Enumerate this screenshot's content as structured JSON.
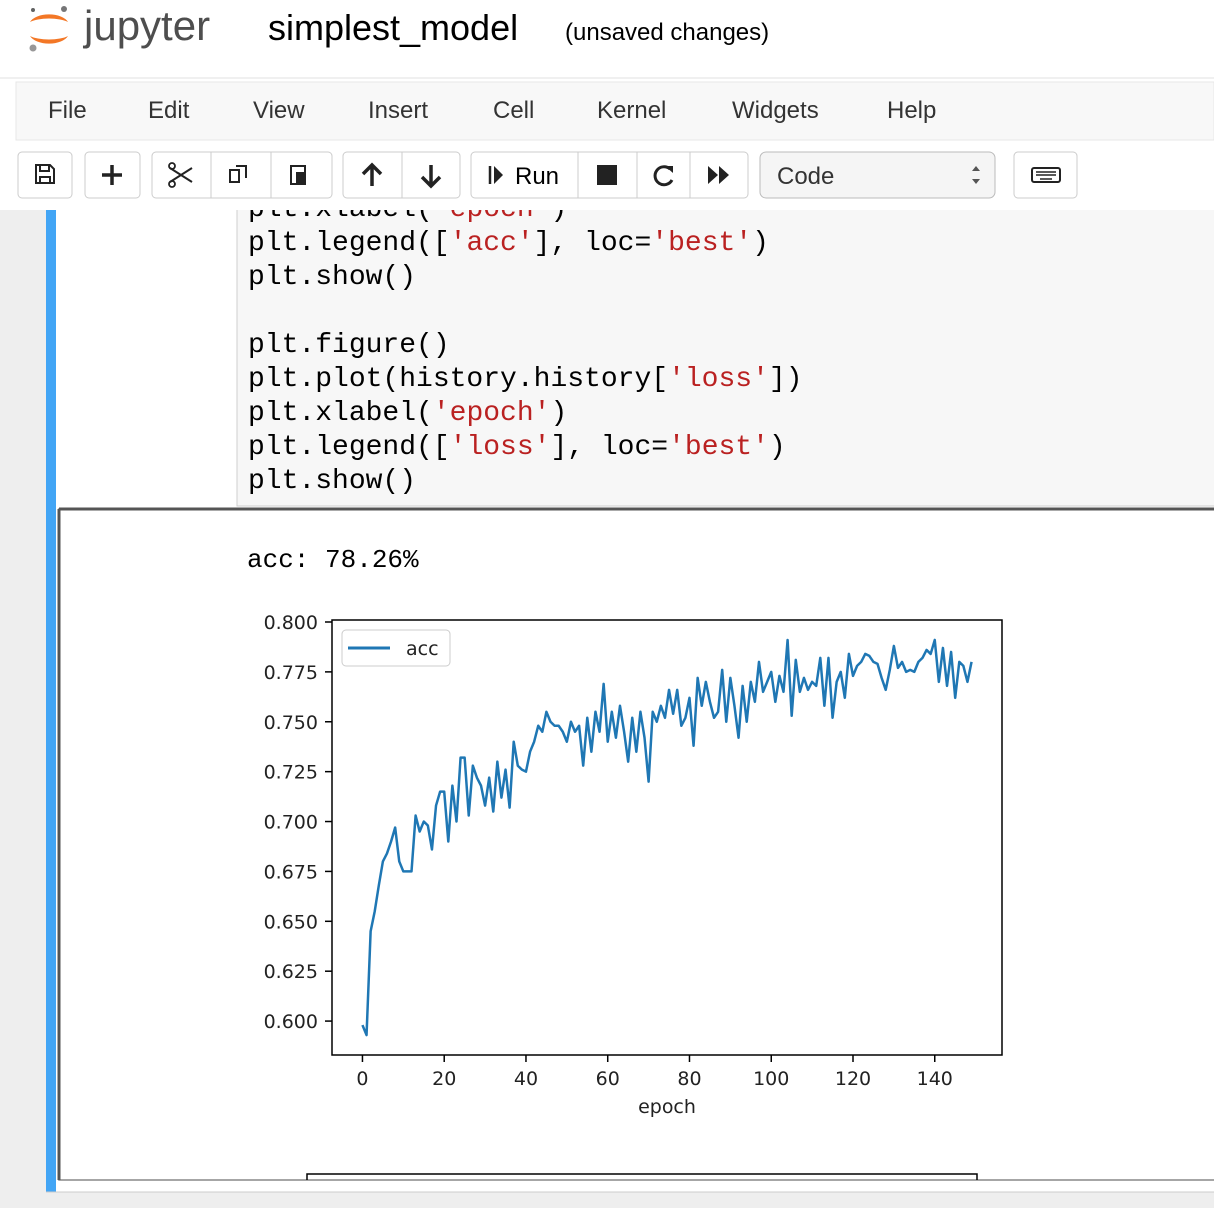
{
  "header": {
    "logo": "jupyter",
    "notebook_name": "simplest_model",
    "save_status": "(unsaved changes)"
  },
  "menu": [
    "File",
    "Edit",
    "View",
    "Insert",
    "Cell",
    "Kernel",
    "Widgets",
    "Help"
  ],
  "toolbar": {
    "run": "Run",
    "cell_type": "Code"
  },
  "cell": {
    "code": [
      [
        "plt.xlabel(",
        "'epoch'",
        ")"
      ],
      [
        "plt.legend([",
        "'acc'",
        "], loc=",
        "'best'",
        ")"
      ],
      [
        "plt.show()"
      ],
      [],
      [
        "plt.figure()"
      ],
      [
        "plt.plot(history.history[",
        "'loss'",
        "])"
      ],
      [
        "plt.xlabel(",
        "'epoch'",
        ")"
      ],
      [
        "plt.legend([",
        "'loss'",
        "], loc=",
        "'best'",
        ")"
      ],
      [
        "plt.show()"
      ]
    ],
    "output": "acc: 78.26%"
  },
  "chart_data": {
    "type": "line",
    "xlabel": "epoch",
    "x": [
      0,
      1,
      2,
      3,
      4,
      5,
      6,
      7,
      8,
      9,
      10,
      11,
      12,
      13,
      14,
      15,
      16,
      17,
      18,
      19,
      20,
      21,
      22,
      23,
      24,
      25,
      26,
      27,
      28,
      29,
      30,
      31,
      32,
      33,
      34,
      35,
      36,
      37,
      38,
      39,
      40,
      41,
      42,
      43,
      44,
      45,
      46,
      47,
      48,
      49,
      50,
      51,
      52,
      53,
      54,
      55,
      56,
      57,
      58,
      59,
      60,
      61,
      62,
      63,
      64,
      65,
      66,
      67,
      68,
      69,
      70,
      71,
      72,
      73,
      74,
      75,
      76,
      77,
      78,
      79,
      80,
      81,
      82,
      83,
      84,
      85,
      86,
      87,
      88,
      89,
      90,
      91,
      92,
      93,
      94,
      95,
      96,
      97,
      98,
      99,
      100,
      101,
      102,
      103,
      104,
      105,
      106,
      107,
      108,
      109,
      110,
      111,
      112,
      113,
      114,
      115,
      116,
      117,
      118,
      119,
      120,
      121,
      122,
      123,
      124,
      125,
      126,
      127,
      128,
      129,
      130,
      131,
      132,
      133,
      134,
      135,
      136,
      137,
      138,
      139,
      140,
      141,
      142,
      143,
      144,
      145,
      146,
      147,
      148,
      149
    ],
    "series": [
      {
        "name": "acc",
        "color": "#1f77b4",
        "values": [
          0.598,
          0.593,
          0.645,
          0.655,
          0.668,
          0.68,
          0.684,
          0.69,
          0.697,
          0.68,
          0.675,
          0.675,
          0.675,
          0.703,
          0.695,
          0.7,
          0.698,
          0.686,
          0.708,
          0.715,
          0.715,
          0.69,
          0.718,
          0.7,
          0.732,
          0.732,
          0.703,
          0.728,
          0.722,
          0.718,
          0.708,
          0.722,
          0.705,
          0.73,
          0.712,
          0.726,
          0.707,
          0.74,
          0.728,
          0.726,
          0.725,
          0.735,
          0.74,
          0.748,
          0.745,
          0.755,
          0.75,
          0.748,
          0.748,
          0.745,
          0.74,
          0.75,
          0.745,
          0.748,
          0.728,
          0.752,
          0.735,
          0.755,
          0.745,
          0.769,
          0.74,
          0.755,
          0.742,
          0.758,
          0.745,
          0.73,
          0.752,
          0.735,
          0.755,
          0.742,
          0.72,
          0.755,
          0.75,
          0.758,
          0.752,
          0.766,
          0.754,
          0.766,
          0.748,
          0.752,
          0.762,
          0.738,
          0.772,
          0.758,
          0.77,
          0.76,
          0.752,
          0.755,
          0.776,
          0.75,
          0.772,
          0.758,
          0.742,
          0.768,
          0.75,
          0.77,
          0.76,
          0.78,
          0.765,
          0.77,
          0.775,
          0.76,
          0.773,
          0.765,
          0.791,
          0.753,
          0.781,
          0.765,
          0.772,
          0.766,
          0.77,
          0.768,
          0.782,
          0.758,
          0.782,
          0.752,
          0.77,
          0.775,
          0.762,
          0.784,
          0.773,
          0.778,
          0.78,
          0.784,
          0.783,
          0.78,
          0.779,
          0.772,
          0.766,
          0.776,
          0.788,
          0.777,
          0.78,
          0.775,
          0.776,
          0.775,
          0.78,
          0.782,
          0.786,
          0.784,
          0.791,
          0.77,
          0.787,
          0.768,
          0.785,
          0.762,
          0.78,
          0.778,
          0.77,
          0.78
        ]
      }
    ],
    "xlim": [
      -7.45,
      156.45
    ],
    "xticks": [
      0,
      20,
      40,
      60,
      80,
      100,
      120,
      140
    ],
    "ylim": [
      0.583,
      0.801
    ],
    "yticks": [
      {
        "value": 0.6,
        "label": "0.600"
      },
      {
        "value": 0.625,
        "label": "0.625"
      },
      {
        "value": 0.65,
        "label": "0.650"
      },
      {
        "value": 0.675,
        "label": "0.675"
      },
      {
        "value": 0.7,
        "label": "0.700"
      },
      {
        "value": 0.725,
        "label": "0.725"
      },
      {
        "value": 0.75,
        "label": "0.750"
      },
      {
        "value": 0.775,
        "label": "0.775"
      },
      {
        "value": 0.8,
        "label": "0.800"
      }
    ],
    "legend": "upper left",
    "grid": false
  }
}
